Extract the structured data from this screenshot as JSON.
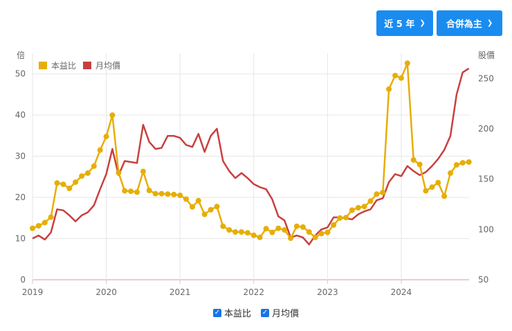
{
  "controls": {
    "range_label": "近 5 年",
    "report_label": "合併為主"
  },
  "legend": {
    "pe_label": "本益比",
    "price_label": "月均價"
  },
  "colors": {
    "pe": "#e6ae05",
    "price": "#c8403e",
    "button": "#1a8cf0",
    "checkbox": "#1a73e8"
  },
  "chart_data": {
    "type": "line",
    "left_axis": {
      "label": "倍",
      "ticks": [
        0,
        10,
        20,
        30,
        40,
        50
      ],
      "range": [
        0,
        55
      ]
    },
    "right_axis": {
      "label": "股價",
      "ticks": [
        50,
        100,
        150,
        200,
        250
      ],
      "range": [
        50,
        275
      ]
    },
    "x_axis": {
      "ticks": [
        "2019",
        "2020",
        "2021",
        "2022",
        "2023",
        "2024"
      ],
      "range": [
        2019.0,
        2024.92
      ]
    },
    "grid": true,
    "series": [
      {
        "name": "本益比",
        "axis": "left",
        "marker": "circle",
        "x": [
          2019.0,
          2019.083,
          2019.167,
          2019.25,
          2019.333,
          2019.417,
          2019.5,
          2019.583,
          2019.667,
          2019.75,
          2019.833,
          2019.917,
          2020.0,
          2020.083,
          2020.167,
          2020.25,
          2020.333,
          2020.417,
          2020.5,
          2020.583,
          2020.667,
          2020.75,
          2020.833,
          2020.917,
          2021.0,
          2021.083,
          2021.167,
          2021.25,
          2021.333,
          2021.417,
          2021.5,
          2021.583,
          2021.667,
          2021.75,
          2021.833,
          2021.917,
          2022.0,
          2022.083,
          2022.167,
          2022.25,
          2022.333,
          2022.417,
          2022.5,
          2022.583,
          2022.667,
          2022.75,
          2022.833,
          2022.917,
          2023.0,
          2023.083,
          2023.167,
          2023.25,
          2023.333,
          2023.417,
          2023.5,
          2023.583,
          2023.667,
          2023.75,
          2023.833,
          2023.917,
          2024.0,
          2024.083,
          2024.167,
          2024.25,
          2024.333,
          2024.417,
          2024.5,
          2024.583,
          2024.667,
          2024.75,
          2024.833,
          2024.917
        ],
        "values": [
          12.5,
          13.1,
          13.9,
          15.2,
          23.5,
          23.2,
          22.2,
          23.7,
          25.2,
          25.9,
          27.6,
          31.5,
          34.8,
          40.0,
          26.0,
          21.6,
          21.5,
          21.3,
          26.3,
          21.7,
          20.9,
          20.9,
          20.8,
          20.7,
          20.5,
          19.6,
          17.7,
          19.2,
          15.9,
          17.0,
          17.8,
          13.0,
          12.1,
          11.6,
          11.6,
          11.4,
          10.8,
          10.3,
          12.4,
          11.5,
          12.5,
          12.1,
          10.1,
          13.0,
          12.8,
          11.6,
          10.3,
          11.2,
          11.5,
          13.3,
          15.0,
          15.1,
          16.9,
          17.5,
          17.8,
          19.1,
          20.8,
          21.2,
          46.3,
          49.6,
          49.0,
          52.6,
          29.1,
          28.0,
          21.6,
          22.5,
          23.6,
          20.3,
          25.9,
          27.9,
          28.4,
          28.6
        ]
      },
      {
        "name": "月均價",
        "axis": "right",
        "marker": "none",
        "x": [
          2019.0,
          2019.083,
          2019.167,
          2019.25,
          2019.333,
          2019.417,
          2019.5,
          2019.583,
          2019.667,
          2019.75,
          2019.833,
          2019.917,
          2020.0,
          2020.083,
          2020.167,
          2020.25,
          2020.333,
          2020.417,
          2020.5,
          2020.583,
          2020.667,
          2020.75,
          2020.833,
          2020.917,
          2021.0,
          2021.083,
          2021.167,
          2021.25,
          2021.333,
          2021.417,
          2021.5,
          2021.583,
          2021.667,
          2021.75,
          2021.833,
          2021.917,
          2022.0,
          2022.083,
          2022.167,
          2022.25,
          2022.333,
          2022.417,
          2022.5,
          2022.583,
          2022.667,
          2022.75,
          2022.833,
          2022.917,
          2023.0,
          2023.083,
          2023.167,
          2023.25,
          2023.333,
          2023.417,
          2023.5,
          2023.583,
          2023.667,
          2023.75,
          2023.833,
          2023.917,
          2024.0,
          2024.083,
          2024.167,
          2024.25,
          2024.333,
          2024.417,
          2024.5,
          2024.583,
          2024.667,
          2024.75,
          2024.833,
          2024.917
        ],
        "values": [
          91,
          94,
          90,
          97,
          120,
          119,
          114,
          108,
          114,
          117,
          124,
          140,
          155,
          180,
          154,
          168,
          167,
          166,
          204,
          187,
          180,
          181,
          193,
          193,
          191,
          184,
          182,
          195,
          177,
          193,
          200,
          168,
          158,
          151,
          156,
          151,
          145,
          142,
          140,
          130,
          113,
          109,
          92,
          94,
          92,
          85,
          94,
          100,
          102,
          112,
          112,
          111,
          110,
          115,
          118,
          120,
          129,
          131,
          147,
          155,
          153,
          163,
          158,
          154,
          157,
          163,
          170,
          179,
          193,
          234,
          256,
          260
        ]
      }
    ]
  }
}
